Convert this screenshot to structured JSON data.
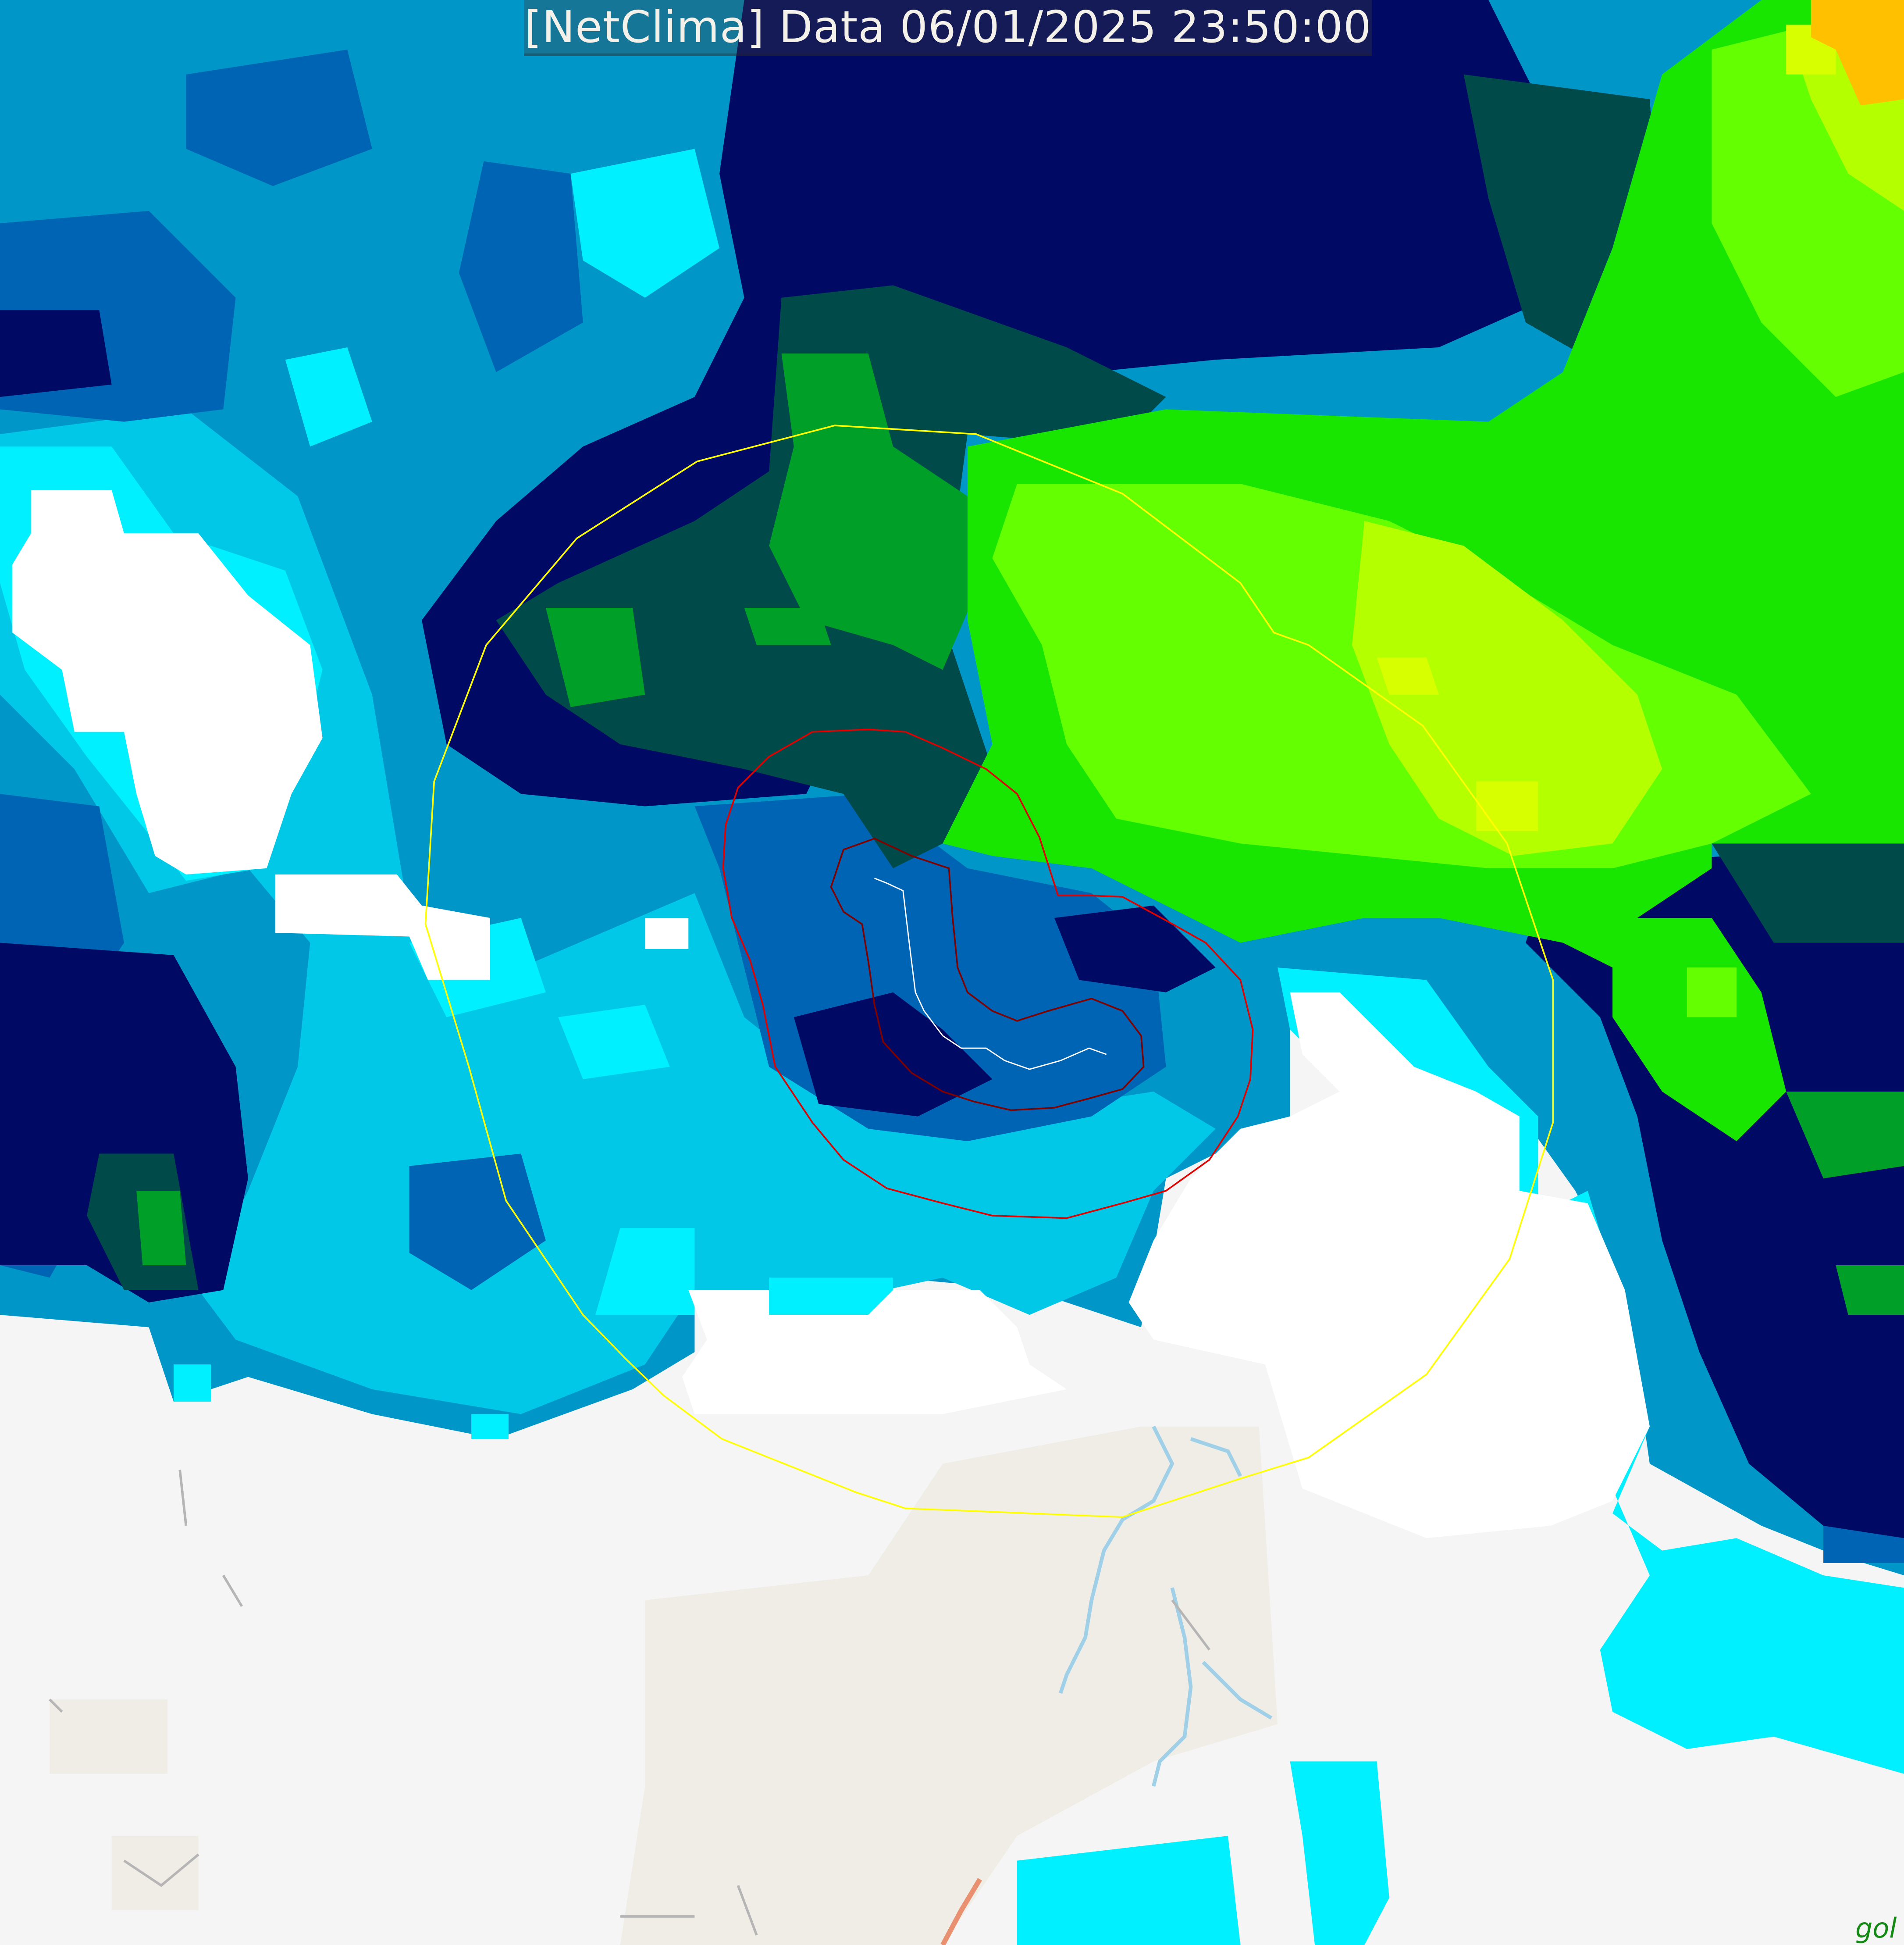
{
  "header": {
    "title": "[NetClima] Data 06/01/2025 23:50:00"
  },
  "map": {
    "partial_label": "gol",
    "overlays": {
      "outer_range_ring_color": "#ffff00",
      "storm_contour_color": "#e00000",
      "inner_contour_color": "#800000",
      "track_color": "#ffffff"
    },
    "palette": [
      "#f4f4f4",
      "#00f0ff",
      "#00c8e6",
      "#0096c8",
      "#0064b4",
      "#003296",
      "#000a64",
      "#003c50",
      "#006432",
      "#00a028",
      "#00e600",
      "#64ff00",
      "#c8ff00",
      "#ffc800"
    ]
  }
}
